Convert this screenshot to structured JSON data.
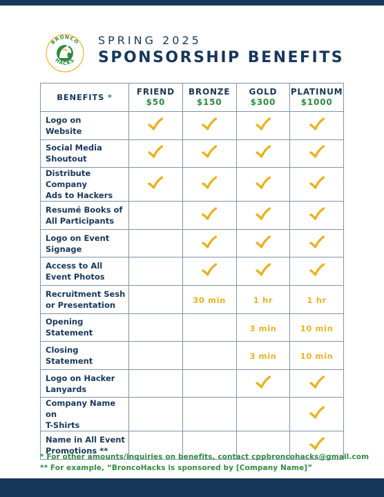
{
  "brand": {
    "logo_text_top": "BRONCO",
    "logo_text_bottom": "HACKS",
    "colors": {
      "navy": "#17375a",
      "green": "#2f8a3e",
      "gold": "#e9b222"
    }
  },
  "header": {
    "subtitle": "SPRING 2025",
    "title": "SPONSORSHIP BENEFITS"
  },
  "table": {
    "benefits_header": "BENEFITS",
    "benefits_star": "*",
    "tiers": [
      {
        "name": "FRIEND",
        "price": "$50"
      },
      {
        "name": "BRONZE",
        "price": "$150"
      },
      {
        "name": "GOLD",
        "price": "$300"
      },
      {
        "name": "PLATINUM",
        "price": "$1000"
      }
    ],
    "rows": [
      {
        "line1": "Logo on",
        "line2": "Website",
        "cells": [
          "check",
          "check",
          "check",
          "check"
        ]
      },
      {
        "line1": "Social Media",
        "line2": "Shoutout",
        "cells": [
          "check",
          "check",
          "check",
          "check"
        ]
      },
      {
        "line1": "Distribute Company",
        "line2": "Ads to Hackers",
        "cells": [
          "check",
          "check",
          "check",
          "check"
        ]
      },
      {
        "line1": "Resumé Books of",
        "line2": "All Participants",
        "cells": [
          "",
          "check",
          "check",
          "check"
        ]
      },
      {
        "line1": "Logo on Event",
        "line2": "Signage",
        "cells": [
          "",
          "check",
          "check",
          "check"
        ]
      },
      {
        "line1": "Access to All",
        "line2": "Event Photos",
        "cells": [
          "",
          "check",
          "check",
          "check"
        ]
      },
      {
        "line1": "Recruitment Sesh",
        "line2": "or Presentation",
        "cells": [
          "",
          "30 min",
          "1 hr",
          "1 hr"
        ]
      },
      {
        "line1": "Opening",
        "line2": "Statement",
        "cells": [
          "",
          "",
          "3 min",
          "10 min"
        ]
      },
      {
        "line1": "Closing",
        "line2": "Statement",
        "cells": [
          "",
          "",
          "3 min",
          "10 min"
        ]
      },
      {
        "line1": "Logo on Hacker",
        "line2": "Lanyards",
        "cells": [
          "",
          "",
          "check",
          "check"
        ]
      },
      {
        "line1": "Company Name on",
        "line2": "T-Shirts",
        "cells": [
          "",
          "",
          "",
          "check"
        ]
      },
      {
        "line1": "Name in All Event",
        "line2": "Promotions **",
        "cells": [
          "",
          "",
          "",
          "check"
        ]
      }
    ]
  },
  "footnotes": {
    "note1": "* For other amounts/inquiries on benefits, contact cppbroncohacks@gmail.com",
    "note2": "** For example, “BroncoHacks is sponsored by [Company Name]”"
  }
}
